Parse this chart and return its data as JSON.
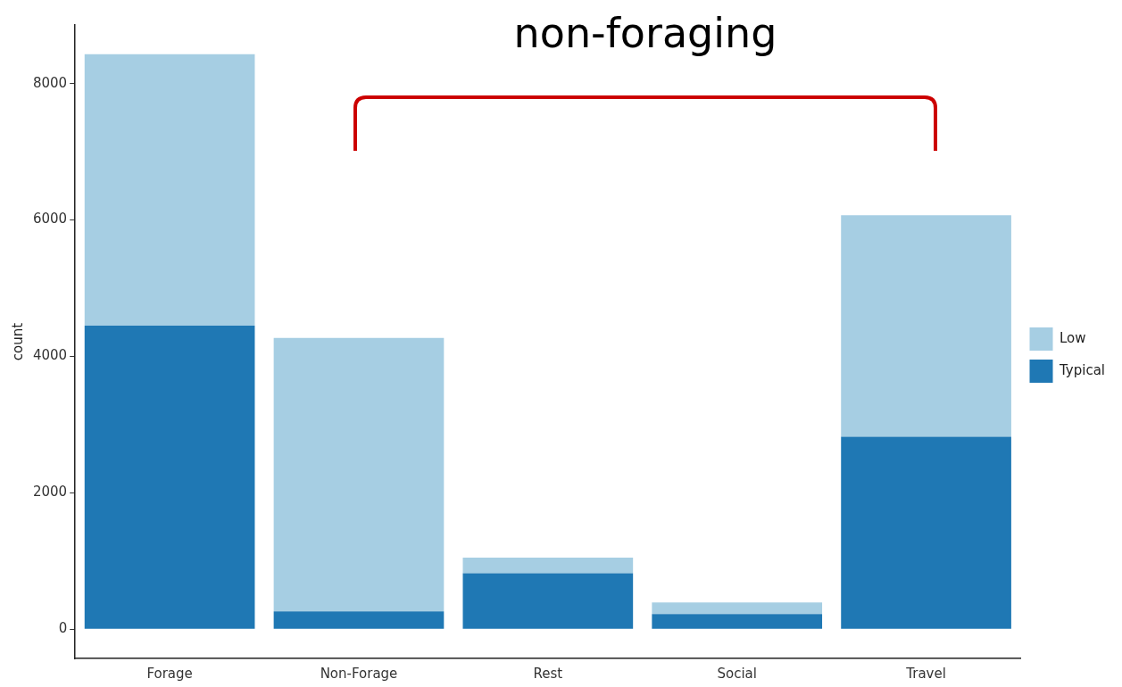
{
  "chart_data": {
    "type": "bar",
    "stacked": true,
    "ylabel": "count",
    "annotations": [
      "non-foraging"
    ],
    "categories": [
      "Forage",
      "Non-Forage",
      "Rest",
      "Social",
      "Travel"
    ],
    "series": [
      {
        "name": "Typical",
        "color": "#1f78b4",
        "values": [
          4450,
          260,
          820,
          220,
          2820
        ]
      },
      {
        "name": "Low",
        "color": "#a6cee3",
        "values": [
          3980,
          4010,
          230,
          170,
          3250
        ]
      }
    ],
    "ylim": [
      -430,
      8860
    ],
    "yticks": [
      0,
      2000,
      4000,
      6000,
      8000
    ],
    "grid": false,
    "legend": "right"
  }
}
